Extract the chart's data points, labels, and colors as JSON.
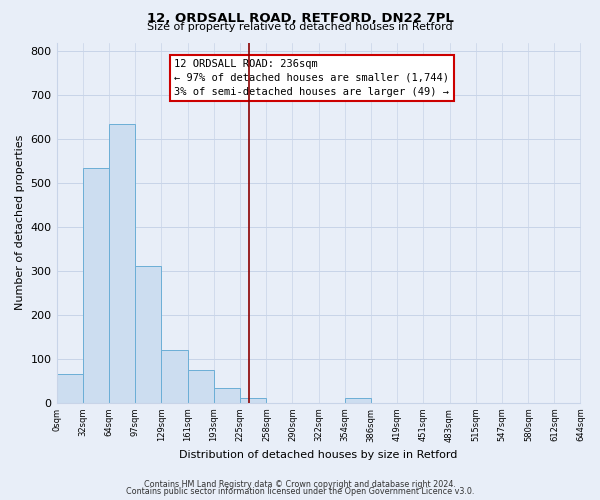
{
  "title": "12, ORDSALL ROAD, RETFORD, DN22 7PL",
  "subtitle": "Size of property relative to detached houses in Retford",
  "xlabel": "Distribution of detached houses by size in Retford",
  "ylabel": "Number of detached properties",
  "bar_edges": [
    0,
    32,
    64,
    97,
    129,
    161,
    193,
    225,
    258,
    290,
    322,
    354,
    386,
    419,
    451,
    483,
    515,
    547,
    580,
    612,
    644
  ],
  "bar_heights": [
    65,
    535,
    635,
    312,
    120,
    75,
    33,
    11,
    0,
    0,
    0,
    10,
    0,
    0,
    0,
    0,
    0,
    0,
    0,
    0
  ],
  "bar_color": "#ccddf0",
  "bar_edge_color": "#6baed6",
  "vline_x": 236,
  "vline_color": "#8b0000",
  "ylim": [
    0,
    820
  ],
  "yticks": [
    0,
    100,
    200,
    300,
    400,
    500,
    600,
    700,
    800
  ],
  "annotation_title": "12 ORDSALL ROAD: 236sqm",
  "annotation_line1": "← 97% of detached houses are smaller (1,744)",
  "annotation_line2": "3% of semi-detached houses are larger (49) →",
  "footer1": "Contains HM Land Registry data © Crown copyright and database right 2024.",
  "footer2": "Contains public sector information licensed under the Open Government Licence v3.0.",
  "tick_labels": [
    "0sqm",
    "32sqm",
    "64sqm",
    "97sqm",
    "129sqm",
    "161sqm",
    "193sqm",
    "225sqm",
    "258sqm",
    "290sqm",
    "322sqm",
    "354sqm",
    "386sqm",
    "419sqm",
    "451sqm",
    "483sqm",
    "515sqm",
    "547sqm",
    "580sqm",
    "612sqm",
    "644sqm"
  ],
  "background_color": "#e8eef8"
}
